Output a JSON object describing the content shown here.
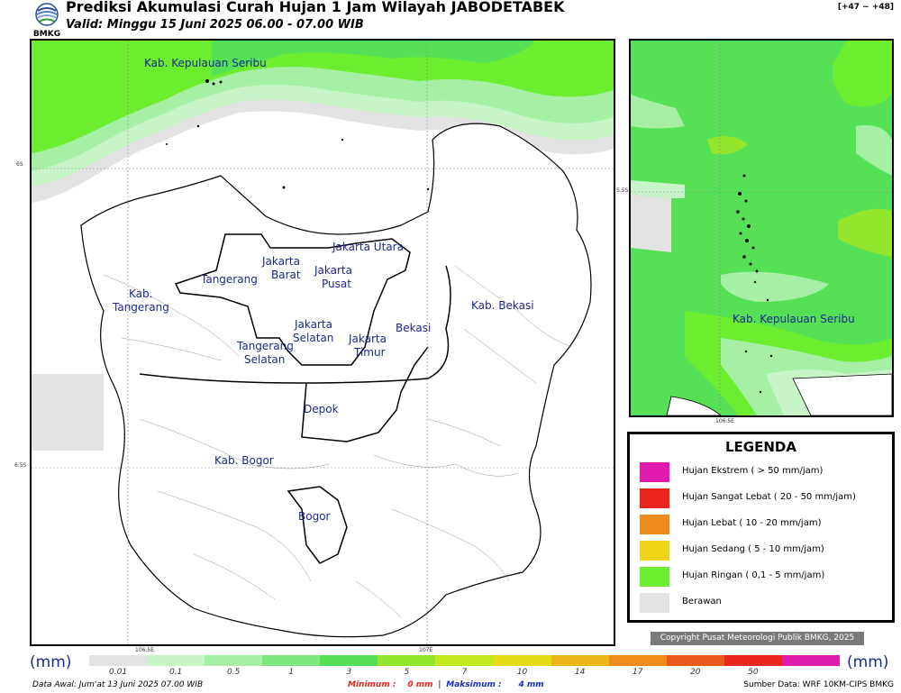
{
  "header": {
    "logo_text": "BMKG",
    "title": "Prediksi Akumulasi Curah Hujan 1 Jam Wilayah JABODETABEK",
    "subtitle": "Valid: Minggu 15 Juni 2025 06.00 - 07.00 WIB",
    "range": "[+47 ~ +48]"
  },
  "main_map": {
    "labels": [
      "Kab. Kepulauan Seribu",
      "Kab.",
      "Tangerang",
      "Tangerang",
      "Jakarta",
      "Barat",
      "Jakarta Utara",
      "Jakarta",
      "Pusat",
      "Jakarta",
      "Selatan",
      "Jakarta",
      "Timur",
      "Bekasi",
      "Kab. Bekasi",
      "Tangerang",
      "Selatan",
      "Depok",
      "Kab. Bogor",
      "Bogor"
    ],
    "lat_ticks": [
      "6S",
      "6.5S"
    ],
    "lon_ticks": [
      "106.5E",
      "107E"
    ]
  },
  "inset_map": {
    "label": "Kab. Kepulauan Seribu",
    "lat_tick": "5.5S",
    "lon_tick": "106.5E"
  },
  "legend": {
    "title": "LEGENDA",
    "items": [
      {
        "label": "Hujan Ekstrem ( > 50 mm/jam)",
        "color": "#e01bb0"
      },
      {
        "label": "Hujan Sangat Lebat ( 20 - 50 mm/jam)",
        "color": "#e8261c"
      },
      {
        "label": "Hujan Lebat ( 10 - 20 mm/jam)",
        "color": "#ef8a1c"
      },
      {
        "label": "Hujan Sedang ( 5 - 10 mm/jam)",
        "color": "#efd51a"
      },
      {
        "label": "Hujan Ringan ( 0,1 - 5 mm/jam)",
        "color": "#6ded2f"
      },
      {
        "label": "Berawan",
        "color": "#e3e3e3"
      }
    ]
  },
  "copyright": "Copyright Pusat Meteorologi Publik BMKG, 2025",
  "colorbar": {
    "unit": "(mm)",
    "ticks": [
      "0.01",
      "0.1",
      "0.5",
      "1",
      "3",
      "5",
      "7",
      "10",
      "14",
      "17",
      "20",
      "50"
    ],
    "colors": [
      "#e3e3e3",
      "#c8f5c8",
      "#a6f0a6",
      "#7de87d",
      "#55e055",
      "#93e62c",
      "#c2e81e",
      "#e5dc17",
      "#efb61a",
      "#ee8d1c",
      "#e85a1c",
      "#e8261c",
      "#e01bb0"
    ]
  },
  "footer": {
    "data_awal": "Data Awal: Jum'at 13 Juni 2025 07.00 WIB",
    "minimum_label": "Minimum :",
    "minimum_value": "0 mm",
    "separator": "|",
    "maximum_label": "Maksimum :",
    "maximum_value": "4 mm",
    "source": "Sumber Data: WRF 10KM-CIPS BMKG"
  }
}
